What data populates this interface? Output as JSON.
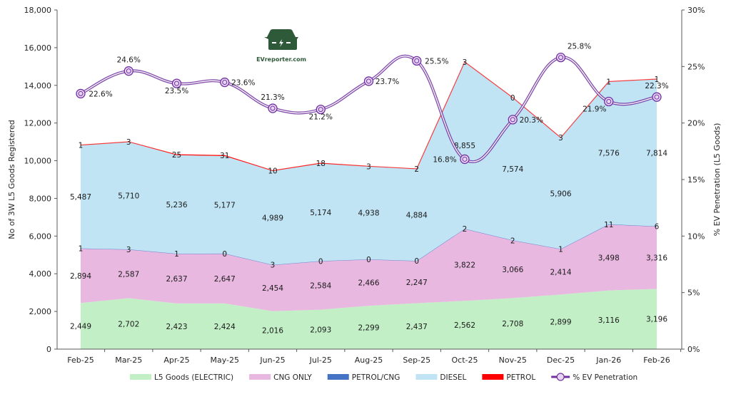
{
  "chart_data": {
    "type": "area",
    "stacked": true,
    "title": "",
    "xlabel": "",
    "ylabel": "No of 3W L5 Goods Registered",
    "y2label": "% EV Penetration (L5 Goods)",
    "ylim": [
      0,
      18000
    ],
    "y2lim": [
      0,
      30
    ],
    "yticks": [
      "0",
      "2,000",
      "4,000",
      "6,000",
      "8,000",
      "10,000",
      "12,000",
      "14,000",
      "16,000",
      "18,000"
    ],
    "y2ticks": [
      "0%",
      "5%",
      "10%",
      "15%",
      "20%",
      "25%",
      "30%"
    ],
    "categories": [
      "Feb-25",
      "Mar-25",
      "Apr-25",
      "May-25",
      "Jun-25",
      "Jul-25",
      "Aug-25",
      "Sep-25",
      "Oct-25",
      "Nov-25",
      "Dec-25",
      "Jan-26",
      "Feb-26"
    ],
    "series": [
      {
        "name": "L5 Goods (ELECTRIC)",
        "color": "#c2efc6",
        "values": [
          2449,
          2702,
          2423,
          2424,
          2016,
          2093,
          2299,
          2437,
          2562,
          2708,
          2899,
          3116,
          3196
        ]
      },
      {
        "name": "CNG ONLY",
        "color": "#e8b8e0",
        "values": [
          2894,
          2587,
          2637,
          2647,
          2454,
          2584,
          2466,
          2247,
          3822,
          3066,
          2414,
          3498,
          3316
        ]
      },
      {
        "name": "PETROL/CNG",
        "color": "#4472c4",
        "values": [
          1,
          3,
          1,
          0,
          3,
          0,
          0,
          0,
          2,
          2,
          1,
          11,
          6
        ]
      },
      {
        "name": "DIESEL",
        "color": "#c1e4f5",
        "values": [
          5487,
          5710,
          5236,
          5177,
          4989,
          5174,
          4938,
          4884,
          8855,
          7574,
          5906,
          7576,
          7814
        ]
      },
      {
        "name": "PETROL",
        "color": "#ff0000",
        "values": [
          1,
          3,
          25,
          31,
          10,
          18,
          3,
          2,
          3,
          0,
          3,
          1,
          1
        ]
      }
    ],
    "line_series": {
      "name": "% EV Penetration",
      "axis": "right",
      "color": "#7030a0",
      "values": [
        22.6,
        24.6,
        23.5,
        23.6,
        21.3,
        21.2,
        23.7,
        25.5,
        16.8,
        20.3,
        25.8,
        21.9,
        22.3
      ],
      "labels": [
        "22.6%",
        "24.6%",
        "23.5%",
        "23.6%",
        "21.3%",
        "21.2%",
        "23.7%",
        "25.5%",
        "16.8%",
        "20.3%",
        "25.8%",
        "21.9%",
        "22.3%"
      ]
    },
    "legend_position": "bottom",
    "grid": false
  },
  "watermark": {
    "text": "EVreporter.com",
    "icon": "car-charging-icon"
  }
}
